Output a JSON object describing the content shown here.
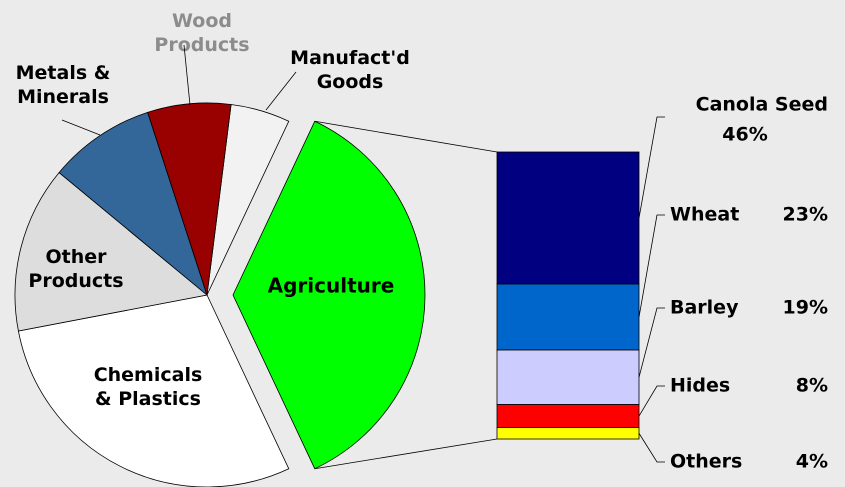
{
  "chart_data": {
    "type": "pie-of-bar",
    "pie": {
      "categories": [
        "Manufact'd\nGoods",
        "Agriculture",
        "Chemicals\n& Plastics",
        "Other\nProducts",
        "Metals &\nMinerals",
        "Wood\nProducts"
      ],
      "values": [
        5,
        36,
        29,
        14,
        9,
        7
      ],
      "colors": [
        "#f2f2f2",
        "#00ff00",
        "#ffffff",
        "#dddddd",
        "#336699",
        "#990000"
      ],
      "exploded_index": 1
    },
    "bar": {
      "categories": [
        "Canola Seed",
        "Wheat",
        "Barley",
        "Hides",
        "Others"
      ],
      "values": [
        46,
        23,
        19,
        8,
        4
      ],
      "value_labels": [
        "46%",
        "23%",
        "19%",
        "8%",
        "4%"
      ],
      "colors": [
        "#000080",
        "#0066cc",
        "#ccccff",
        "#ff0000",
        "#ffff00"
      ]
    }
  }
}
